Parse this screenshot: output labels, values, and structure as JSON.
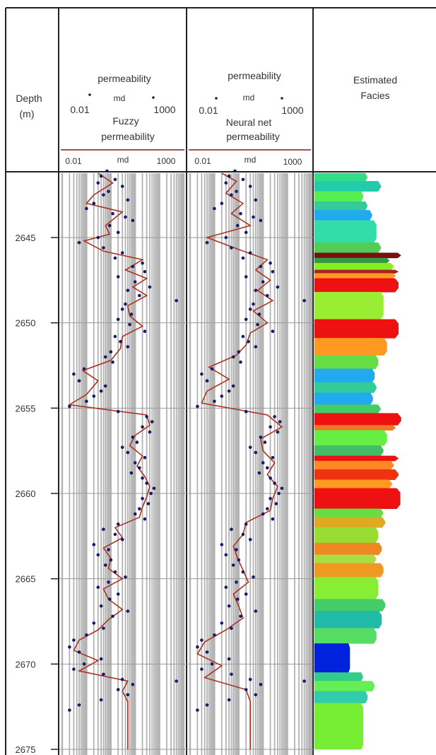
{
  "chart_data": {
    "type": "well_log",
    "depth": {
      "label": "Depth",
      "unit": "(m)",
      "range": [
        2641,
        2675
      ],
      "ticks": [
        2645,
        2650,
        2655,
        2660,
        2665,
        2670,
        2675
      ],
      "tick_labels": [
        "2645",
        "2650",
        "2655",
        "2660",
        "2665",
        "2670",
        "2675"
      ]
    },
    "tracks": [
      {
        "id": "fuzzy",
        "header": {
          "points_curve": "permeability",
          "points_unit": "md",
          "points_scale_min": "0.01",
          "points_scale_max": "1000",
          "line_curve_1": "Fuzzy",
          "line_curve_2": "permeability",
          "line_unit": "md",
          "line_scale_min": "0.01",
          "line_scale_max": "1000"
        },
        "scale": "log",
        "xlim": [
          0.01,
          1000
        ]
      },
      {
        "id": "neural",
        "header": {
          "points_curve": "permeability",
          "points_unit": "md",
          "points_scale_min": "0.01",
          "points_scale_max": "1000",
          "line_curve_1": "Neural net",
          "line_curve_2": "permeability",
          "line_unit": "md",
          "line_scale_min": "0.01",
          "line_scale_max": "1000"
        },
        "scale": "log",
        "xlim": [
          0.01,
          1000
        ]
      }
    ],
    "facies_track": {
      "title_1": "Estimated",
      "title_2": "Facies"
    },
    "core_permeability_points": [
      [
        2641.1,
        0.7
      ],
      [
        2641.4,
        0.4
      ],
      [
        2641.6,
        1.5
      ],
      [
        2641.8,
        0.3
      ],
      [
        2642.0,
        3.0
      ],
      [
        2642.3,
        0.8
      ],
      [
        2642.5,
        0.5
      ],
      [
        2642.8,
        5.0
      ],
      [
        2643.0,
        0.2
      ],
      [
        2643.3,
        0.1
      ],
      [
        2643.6,
        1.2
      ],
      [
        2643.8,
        4.0
      ],
      [
        2644.0,
        8.0
      ],
      [
        2644.3,
        0.9
      ],
      [
        2644.7,
        2.0
      ],
      [
        2645.0,
        0.3
      ],
      [
        2645.3,
        0.05
      ],
      [
        2645.6,
        0.5
      ],
      [
        2645.9,
        3.0
      ],
      [
        2646.2,
        1.5
      ],
      [
        2646.5,
        20
      ],
      [
        2646.7,
        8
      ],
      [
        2647.0,
        25
      ],
      [
        2647.3,
        2.0
      ],
      [
        2647.6,
        10
      ],
      [
        2647.9,
        40
      ],
      [
        2648.1,
        5
      ],
      [
        2648.4,
        15
      ],
      [
        2648.7,
        500
      ],
      [
        2648.9,
        4
      ],
      [
        2649.2,
        3
      ],
      [
        2649.5,
        7
      ],
      [
        2649.8,
        2
      ],
      [
        2650.1,
        6
      ],
      [
        2650.5,
        25
      ],
      [
        2650.8,
        1.5
      ],
      [
        2651.1,
        2.5
      ],
      [
        2651.4,
        5
      ],
      [
        2651.7,
        1.0
      ],
      [
        2652.0,
        0.6
      ],
      [
        2652.3,
        1.2
      ],
      [
        2652.7,
        0.08
      ],
      [
        2653.0,
        0.03
      ],
      [
        2653.4,
        0.05
      ],
      [
        2653.7,
        0.6
      ],
      [
        2654.0,
        0.4
      ],
      [
        2654.3,
        0.2
      ],
      [
        2654.6,
        0.1
      ],
      [
        2654.9,
        0.02
      ],
      [
        2655.2,
        2.0
      ],
      [
        2655.5,
        30
      ],
      [
        2655.8,
        50
      ],
      [
        2656.1,
        20
      ],
      [
        2656.4,
        40
      ],
      [
        2656.7,
        8
      ],
      [
        2657.0,
        12
      ],
      [
        2657.3,
        3
      ],
      [
        2657.6,
        5
      ],
      [
        2657.9,
        25
      ],
      [
        2658.2,
        10
      ],
      [
        2658.5,
        15
      ],
      [
        2658.8,
        7
      ],
      [
        2659.1,
        20
      ],
      [
        2659.4,
        30
      ],
      [
        2659.7,
        60
      ],
      [
        2660.0,
        45
      ],
      [
        2660.3,
        20
      ],
      [
        2660.6,
        35
      ],
      [
        2660.9,
        15
      ],
      [
        2661.2,
        10
      ],
      [
        2661.5,
        25
      ],
      [
        2661.8,
        2.0
      ],
      [
        2662.1,
        0.5
      ],
      [
        2662.4,
        1.5
      ],
      [
        2662.7,
        3.0
      ],
      [
        2663.0,
        0.2
      ],
      [
        2663.3,
        0.8
      ],
      [
        2663.6,
        0.3
      ],
      [
        2663.9,
        1.0
      ],
      [
        2664.2,
        0.6
      ],
      [
        2664.6,
        1.5
      ],
      [
        2664.9,
        4.0
      ],
      [
        2665.2,
        0.8
      ],
      [
        2665.5,
        0.3
      ],
      [
        2665.9,
        2.0
      ],
      [
        2666.2,
        0.9
      ],
      [
        2666.6,
        0.4
      ],
      [
        2666.9,
        5.0
      ],
      [
        2667.2,
        1.2
      ],
      [
        2667.6,
        0.2
      ],
      [
        2667.9,
        0.5
      ],
      [
        2668.3,
        0.1
      ],
      [
        2668.6,
        0.03
      ],
      [
        2669.0,
        0.02
      ],
      [
        2669.3,
        0.05
      ],
      [
        2669.7,
        0.4
      ],
      [
        2670.0,
        0.08
      ],
      [
        2670.3,
        0.03
      ],
      [
        2670.6,
        0.5
      ],
      [
        2670.9,
        3.0
      ],
      [
        2671.2,
        8.0
      ],
      [
        2671.5,
        2.0
      ],
      [
        2671.8,
        5.0
      ],
      [
        2672.1,
        0.4
      ],
      [
        2672.4,
        0.05
      ],
      [
        2672.7,
        0.02
      ],
      [
        2671.0,
        500
      ]
    ],
    "fuzzy_permeability_curve": [
      [
        2641.0,
        0.3
      ],
      [
        2641.8,
        1.2
      ],
      [
        2642.5,
        0.2
      ],
      [
        2643.0,
        0.1
      ],
      [
        2643.5,
        3.0
      ],
      [
        2644.3,
        0.6
      ],
      [
        2644.8,
        0.9
      ],
      [
        2645.2,
        0.08
      ],
      [
        2645.8,
        0.5
      ],
      [
        2646.3,
        20
      ],
      [
        2646.9,
        4
      ],
      [
        2647.4,
        30
      ],
      [
        2647.9,
        8
      ],
      [
        2648.4,
        30
      ],
      [
        2649.0,
        5
      ],
      [
        2649.6,
        6
      ],
      [
        2650.2,
        20
      ],
      [
        2650.8,
        3
      ],
      [
        2651.5,
        2.5
      ],
      [
        2652.2,
        1.0
      ],
      [
        2652.8,
        0.07
      ],
      [
        2653.4,
        0.3
      ],
      [
        2654.2,
        0.1
      ],
      [
        2654.8,
        0.02
      ],
      [
        2655.4,
        30
      ],
      [
        2656.0,
        40
      ],
      [
        2656.6,
        10
      ],
      [
        2657.2,
        6
      ],
      [
        2657.8,
        20
      ],
      [
        2658.4,
        12
      ],
      [
        2659.0,
        25
      ],
      [
        2659.6,
        40
      ],
      [
        2660.2,
        30
      ],
      [
        2660.8,
        20
      ],
      [
        2661.4,
        15
      ],
      [
        2662.0,
        1.5
      ],
      [
        2662.6,
        3.0
      ],
      [
        2663.2,
        0.5
      ],
      [
        2663.8,
        1.0
      ],
      [
        2664.4,
        0.8
      ],
      [
        2665.0,
        3.0
      ],
      [
        2665.6,
        0.5
      ],
      [
        2666.2,
        0.8
      ],
      [
        2666.8,
        3.0
      ],
      [
        2667.4,
        0.8
      ],
      [
        2668.0,
        0.3
      ],
      [
        2668.6,
        0.05
      ],
      [
        2669.2,
        0.03
      ],
      [
        2669.8,
        0.3
      ],
      [
        2670.4,
        0.05
      ],
      [
        2671.0,
        5.0
      ],
      [
        2671.6,
        3.0
      ],
      [
        2672.2,
        5.0
      ],
      [
        2675.0,
        5.0
      ]
    ],
    "neural_permeability_curve": [
      [
        2641.0,
        0.2
      ],
      [
        2641.7,
        0.8
      ],
      [
        2642.4,
        0.3
      ],
      [
        2643.0,
        1.5
      ],
      [
        2643.6,
        0.5
      ],
      [
        2644.3,
        3.0
      ],
      [
        2645.0,
        0.05
      ],
      [
        2645.7,
        1.0
      ],
      [
        2646.3,
        15
      ],
      [
        2646.9,
        5
      ],
      [
        2647.5,
        20
      ],
      [
        2648.1,
        6
      ],
      [
        2648.7,
        25
      ],
      [
        2649.3,
        4
      ],
      [
        2650.0,
        15
      ],
      [
        2650.6,
        3
      ],
      [
        2651.3,
        2
      ],
      [
        2651.9,
        0.8
      ],
      [
        2652.6,
        0.06
      ],
      [
        2653.3,
        0.4
      ],
      [
        2654.0,
        0.05
      ],
      [
        2654.7,
        0.03
      ],
      [
        2655.4,
        15
      ],
      [
        2656.1,
        60
      ],
      [
        2656.8,
        8
      ],
      [
        2657.5,
        10
      ],
      [
        2658.2,
        30
      ],
      [
        2658.9,
        15
      ],
      [
        2659.6,
        40
      ],
      [
        2660.3,
        25
      ],
      [
        2661.0,
        20
      ],
      [
        2661.7,
        2
      ],
      [
        2662.4,
        1.5
      ],
      [
        2663.1,
        0.6
      ],
      [
        2663.8,
        0.9
      ],
      [
        2664.5,
        1.5
      ],
      [
        2665.2,
        2.5
      ],
      [
        2665.9,
        0.6
      ],
      [
        2666.6,
        1.0
      ],
      [
        2667.3,
        1.5
      ],
      [
        2668.0,
        0.3
      ],
      [
        2668.7,
        0.04
      ],
      [
        2669.4,
        0.02
      ],
      [
        2670.1,
        0.2
      ],
      [
        2670.8,
        0.04
      ],
      [
        2671.5,
        2.0
      ],
      [
        2672.2,
        3.0
      ],
      [
        2675.0,
        3.0
      ]
    ],
    "facies": [
      {
        "top": 2641.0,
        "base": 2641.7,
        "color": "#33dd88",
        "amp": 0.6
      },
      {
        "top": 2641.7,
        "base": 2642.3,
        "color": "#22ccaa",
        "amp": 0.75
      },
      {
        "top": 2642.3,
        "base": 2642.9,
        "color": "#55ee55",
        "amp": 0.55
      },
      {
        "top": 2642.9,
        "base": 2643.4,
        "color": "#33cc99",
        "amp": 0.6
      },
      {
        "top": 2643.4,
        "base": 2644.0,
        "color": "#22aaee",
        "amp": 0.65
      },
      {
        "top": 2644.0,
        "base": 2645.3,
        "color": "#33ddaa",
        "amp": 0.7
      },
      {
        "top": 2645.3,
        "base": 2645.9,
        "color": "#55cc55",
        "amp": 0.75
      },
      {
        "top": 2645.9,
        "base": 2646.2,
        "color": "#771111",
        "amp": 0.98
      },
      {
        "top": 2646.2,
        "base": 2646.5,
        "color": "#339944",
        "amp": 0.85
      },
      {
        "top": 2646.5,
        "base": 2646.9,
        "color": "#88ee22",
        "amp": 0.9
      },
      {
        "top": 2646.9,
        "base": 2647.1,
        "color": "#aa2222",
        "amp": 0.95
      },
      {
        "top": 2647.1,
        "base": 2647.4,
        "color": "#ff9922",
        "amp": 0.92
      },
      {
        "top": 2647.4,
        "base": 2648.2,
        "color": "#ee1111",
        "amp": 0.95
      },
      {
        "top": 2648.2,
        "base": 2649.8,
        "color": "#99ee33",
        "amp": 0.78
      },
      {
        "top": 2649.8,
        "base": 2650.9,
        "color": "#ee1111",
        "amp": 0.95
      },
      {
        "top": 2650.9,
        "base": 2651.9,
        "color": "#ff9922",
        "amp": 0.82
      },
      {
        "top": 2651.9,
        "base": 2652.7,
        "color": "#66dd44",
        "amp": 0.72
      },
      {
        "top": 2652.7,
        "base": 2653.5,
        "color": "#22aaee",
        "amp": 0.68
      },
      {
        "top": 2653.5,
        "base": 2654.1,
        "color": "#33cc99",
        "amp": 0.7
      },
      {
        "top": 2654.1,
        "base": 2654.8,
        "color": "#22aaee",
        "amp": 0.66
      },
      {
        "top": 2654.8,
        "base": 2655.3,
        "color": "#44cc66",
        "amp": 0.75
      },
      {
        "top": 2655.3,
        "base": 2656.0,
        "color": "#ee1111",
        "amp": 0.98
      },
      {
        "top": 2656.0,
        "base": 2656.3,
        "color": "#ee7722",
        "amp": 0.92
      },
      {
        "top": 2656.3,
        "base": 2657.2,
        "color": "#66ee44",
        "amp": 0.82
      },
      {
        "top": 2657.2,
        "base": 2657.8,
        "color": "#44bb66",
        "amp": 0.78
      },
      {
        "top": 2657.8,
        "base": 2658.1,
        "color": "#ee1111",
        "amp": 0.95
      },
      {
        "top": 2658.1,
        "base": 2658.6,
        "color": "#ff8822",
        "amp": 0.9
      },
      {
        "top": 2658.6,
        "base": 2659.2,
        "color": "#ee3311",
        "amp": 0.95
      },
      {
        "top": 2659.2,
        "base": 2659.7,
        "color": "#ff9922",
        "amp": 0.88
      },
      {
        "top": 2659.7,
        "base": 2660.9,
        "color": "#ee1111",
        "amp": 0.97
      },
      {
        "top": 2660.9,
        "base": 2661.4,
        "color": "#66dd44",
        "amp": 0.78
      },
      {
        "top": 2661.4,
        "base": 2662.0,
        "color": "#ddaa22",
        "amp": 0.8
      },
      {
        "top": 2662.0,
        "base": 2662.9,
        "color": "#99dd33",
        "amp": 0.72
      },
      {
        "top": 2662.9,
        "base": 2663.6,
        "color": "#ee8822",
        "amp": 0.76
      },
      {
        "top": 2663.6,
        "base": 2664.1,
        "color": "#aadd44",
        "amp": 0.7
      },
      {
        "top": 2664.1,
        "base": 2664.9,
        "color": "#ee9922",
        "amp": 0.78
      },
      {
        "top": 2664.9,
        "base": 2666.2,
        "color": "#88ee33",
        "amp": 0.72
      },
      {
        "top": 2666.2,
        "base": 2666.9,
        "color": "#44cc66",
        "amp": 0.8
      },
      {
        "top": 2666.9,
        "base": 2667.9,
        "color": "#22bbaa",
        "amp": 0.76
      },
      {
        "top": 2667.9,
        "base": 2668.8,
        "color": "#55dd66",
        "amp": 0.7
      },
      {
        "top": 2668.8,
        "base": 2670.5,
        "color": "#0022dd",
        "amp": 0.4
      },
      {
        "top": 2670.5,
        "base": 2671.0,
        "color": "#33cc88",
        "amp": 0.55
      },
      {
        "top": 2671.0,
        "base": 2671.6,
        "color": "#66ee55",
        "amp": 0.68
      },
      {
        "top": 2671.6,
        "base": 2672.3,
        "color": "#33ccaa",
        "amp": 0.6
      },
      {
        "top": 2672.3,
        "base": 2675.0,
        "color": "#77ee33",
        "amp": 0.55
      }
    ],
    "colors": {
      "points": "#1a1a66",
      "curve": "#aa3322",
      "header_rule": "#7a1a1a",
      "grid": "#b3b3b3",
      "depth_grid": "#cfcfcf",
      "frame": "#222222"
    }
  }
}
